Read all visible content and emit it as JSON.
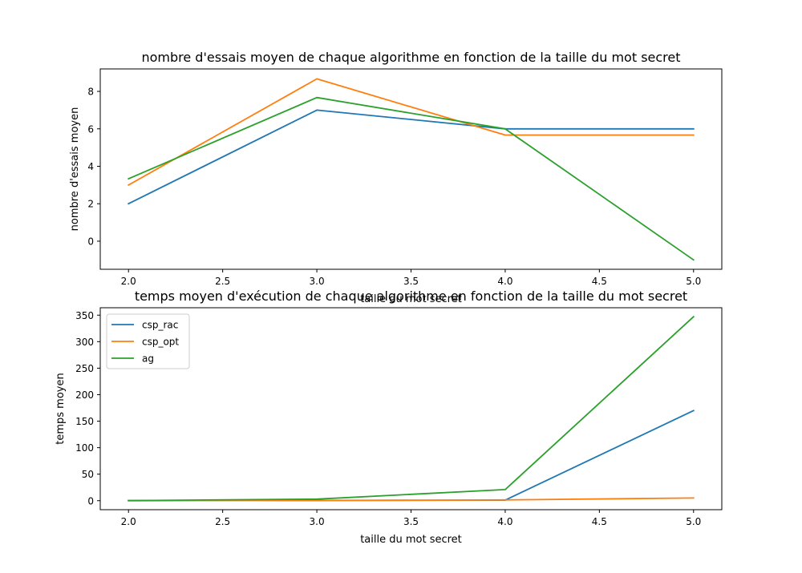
{
  "chart_data": [
    {
      "type": "line",
      "title": "nombre d'essais moyen de chaque algorithme en fonction de la taille du mot secret",
      "xlabel": "taille du mot secret",
      "ylabel": "nombre d'essais moyen",
      "x": [
        2,
        3,
        4,
        5
      ],
      "xlim": [
        1.85,
        5.15
      ],
      "ylim": [
        -1.5,
        9.2
      ],
      "xticks": [
        2.0,
        2.5,
        3.0,
        3.5,
        4.0,
        4.5,
        5.0
      ],
      "xtick_labels": [
        "2.0",
        "2.5",
        "3.0",
        "3.5",
        "4.0",
        "4.5",
        "5.0"
      ],
      "yticks": [
        0,
        2,
        4,
        6,
        8
      ],
      "ytick_labels": [
        "0",
        "2",
        "4",
        "6",
        "8"
      ],
      "legend": false,
      "series": [
        {
          "color": "#1f77b4",
          "values": [
            2,
            7,
            6,
            6
          ]
        },
        {
          "color": "#ff7f0e",
          "values": [
            3,
            8.67,
            5.67,
            5.67
          ]
        },
        {
          "color": "#2ca02c",
          "values": [
            3.33,
            7.67,
            6,
            -1
          ]
        }
      ]
    },
    {
      "type": "line",
      "title": "temps moyen d'exécution de chaque algorithme en fonction de la taille du mot secret",
      "xlabel": "taille du mot secret",
      "ylabel": "temps moyen",
      "x": [
        2,
        3,
        4,
        5
      ],
      "xlim": [
        1.85,
        5.15
      ],
      "ylim": [
        -17,
        364
      ],
      "xticks": [
        2.0,
        2.5,
        3.0,
        3.5,
        4.0,
        4.5,
        5.0
      ],
      "xtick_labels": [
        "2.0",
        "2.5",
        "3.0",
        "3.5",
        "4.0",
        "4.5",
        "5.0"
      ],
      "yticks": [
        0,
        50,
        100,
        150,
        200,
        250,
        300,
        350
      ],
      "ytick_labels": [
        "0",
        "50",
        "100",
        "150",
        "200",
        "250",
        "300",
        "350"
      ],
      "legend": true,
      "legend_position": "upper-left",
      "series": [
        {
          "name": "csp_rac",
          "color": "#1f77b4",
          "values": [
            0.1,
            0.5,
            1,
            170
          ]
        },
        {
          "name": "csp_opt",
          "color": "#ff7f0e",
          "values": [
            0.1,
            0.3,
            1.5,
            5
          ]
        },
        {
          "name": "ag",
          "color": "#2ca02c",
          "values": [
            0.2,
            3,
            21,
            347
          ]
        }
      ]
    }
  ]
}
